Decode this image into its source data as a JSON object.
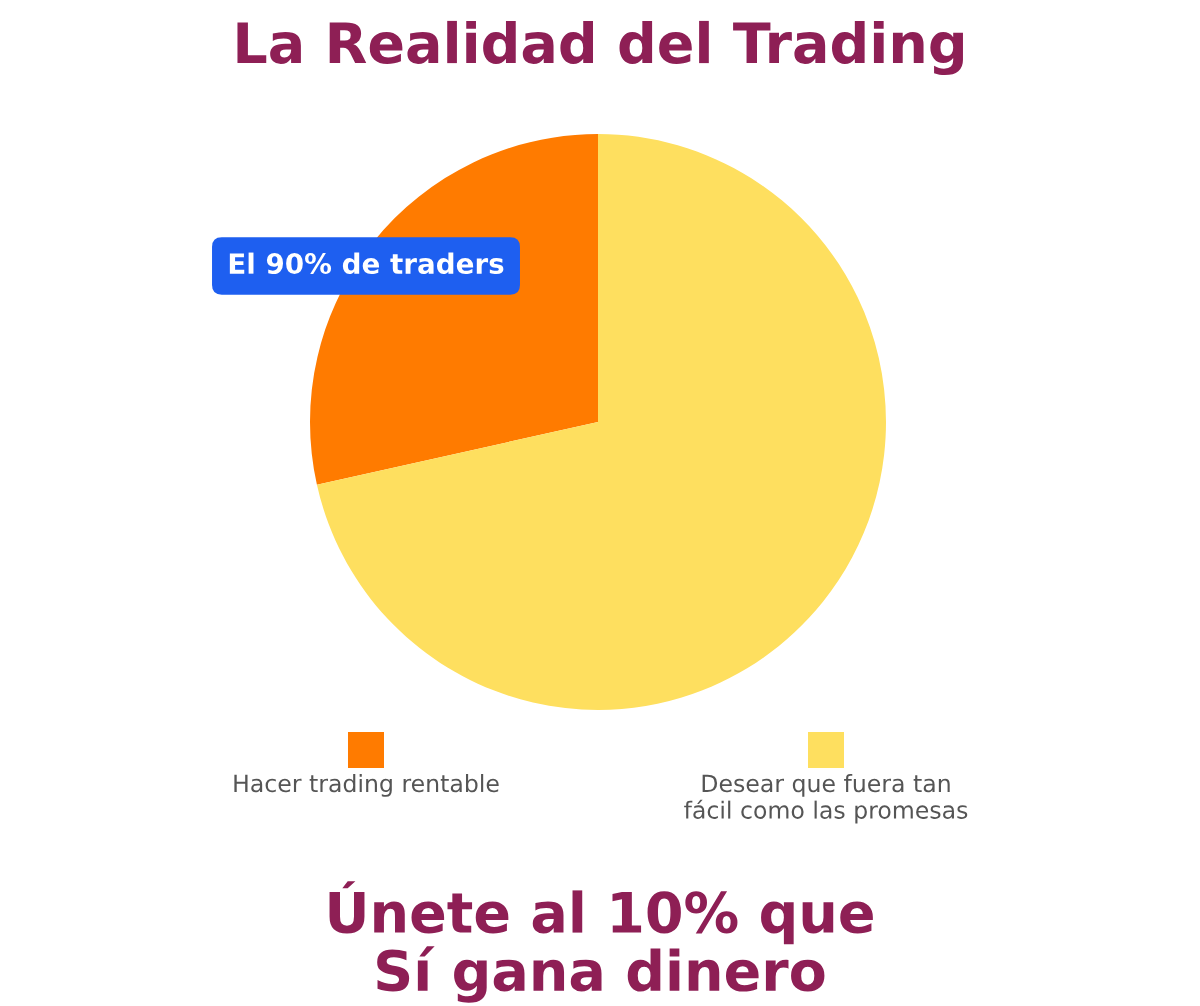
{
  "chart_data": {
    "type": "pie",
    "title": "La Realidad del Trading",
    "categories": [
      "Hacer trading rentable",
      "Desear que fuera tan\nfácil como las promesas"
    ],
    "values": [
      28.5,
      71.5
    ],
    "colors": [
      "#ff7b00",
      "#fedf5f"
    ],
    "legend": "bottom",
    "annotations": [
      "El 90% de traders",
      "Únete al 10% que\nSí gana dinero"
    ]
  }
}
